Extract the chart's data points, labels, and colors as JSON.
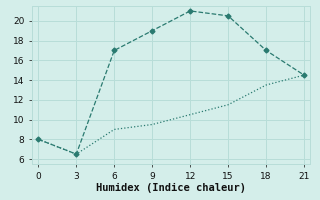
{
  "line1_x": [
    0,
    3,
    6,
    9,
    12,
    15,
    18,
    21
  ],
  "line1_y": [
    8,
    6.5,
    17,
    19,
    21,
    20.5,
    17,
    14.5
  ],
  "line2_x": [
    0,
    3,
    6,
    9,
    12,
    15,
    18,
    21
  ],
  "line2_y": [
    8,
    6.5,
    9,
    9.5,
    10.5,
    11.5,
    13.5,
    14.5
  ],
  "line_color": "#2a7a70",
  "bg_color": "#d4eeea",
  "grid_color": "#b8ddd8",
  "xlabel": "Humidex (Indice chaleur)",
  "xlim": [
    -0.5,
    21.5
  ],
  "ylim": [
    5.5,
    21.5
  ],
  "xticks": [
    0,
    3,
    6,
    9,
    12,
    15,
    18,
    21
  ],
  "yticks": [
    6,
    8,
    10,
    12,
    14,
    16,
    18,
    20
  ],
  "xlabel_fontsize": 7.5,
  "tick_fontsize": 6.5
}
